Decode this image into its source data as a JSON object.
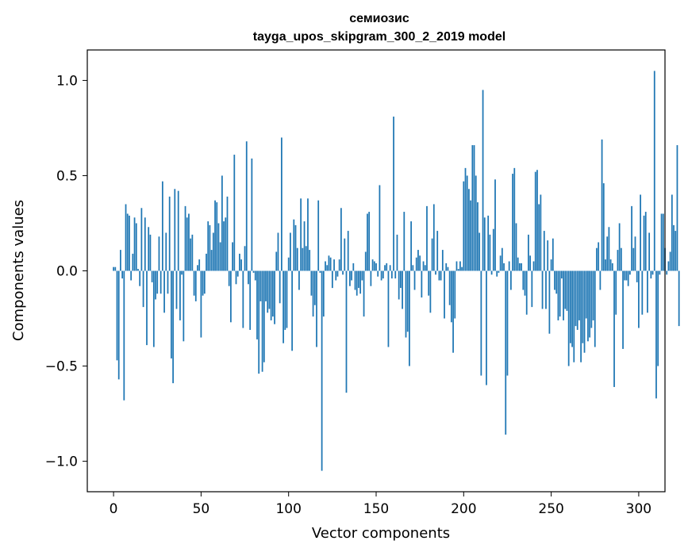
{
  "chart_data": {
    "type": "bar",
    "title": "семиозис",
    "subtitle": "tayga_upos_skipgram_300_2_2019 model",
    "xlabel": "Vector components",
    "ylabel": "Components values",
    "xlim": [
      -15,
      315
    ],
    "ylim": [
      -1.16,
      1.16
    ],
    "xticks": [
      0,
      50,
      100,
      150,
      200,
      250,
      300
    ],
    "xtick_labels": [
      "0",
      "50",
      "100",
      "150",
      "200",
      "250",
      "300"
    ],
    "yticks": [
      -1.0,
      -0.5,
      0.0,
      0.5,
      1.0
    ],
    "ytick_labels": [
      "−1.0",
      "−0.5",
      "0.0",
      "0.5",
      "1.0"
    ],
    "bar_color": "#1f77b4",
    "grid": false,
    "legend": "none",
    "values": [
      0.02,
      0.02,
      -0.47,
      -0.57,
      0.11,
      -0.04,
      -0.68,
      0.35,
      0.3,
      0.29,
      -0.05,
      0.09,
      0.28,
      0.25,
      0.01,
      -0.08,
      0.33,
      -0.19,
      0.28,
      -0.39,
      0.23,
      0.19,
      -0.06,
      -0.4,
      -0.15,
      -0.12,
      0.18,
      -0.12,
      0.47,
      -0.22,
      0.2,
      -0.12,
      0.39,
      -0.46,
      -0.59,
      0.43,
      -0.2,
      0.42,
      -0.26,
      -0.02,
      -0.37,
      0.34,
      0.28,
      0.3,
      0.17,
      0.19,
      -0.13,
      -0.16,
      0.03,
      0.06,
      -0.35,
      -0.13,
      -0.12,
      0.09,
      0.26,
      0.24,
      0.11,
      0.2,
      0.37,
      0.36,
      0.25,
      0.15,
      0.5,
      0.26,
      0.28,
      0.39,
      -0.08,
      -0.27,
      0.15,
      0.61,
      -0.07,
      -0.03,
      0.09,
      0.06,
      -0.3,
      0.13,
      0.68,
      -0.07,
      -0.31,
      0.59,
      -0.01,
      -0.05,
      -0.36,
      -0.54,
      -0.16,
      -0.53,
      -0.48,
      -0.16,
      -0.22,
      -0.2,
      -0.26,
      -0.24,
      -0.28,
      0.1,
      0.2,
      -0.17,
      0.7,
      -0.38,
      -0.31,
      -0.3,
      0.07,
      0.2,
      -0.42,
      0.27,
      0.24,
      0.12,
      -0.1,
      0.38,
      0.12,
      0.26,
      0.13,
      0.38,
      0.11,
      -0.13,
      -0.24,
      -0.18,
      -0.4,
      0.37,
      -0.01,
      -1.05,
      -0.24,
      0.05,
      0.03,
      0.08,
      0.07,
      -0.09,
      0.06,
      -0.05,
      -0.03,
      0.06,
      0.33,
      -0.02,
      0.17,
      -0.64,
      0.21,
      -0.08,
      -0.05,
      0.04,
      -0.1,
      -0.13,
      -0.09,
      -0.12,
      -0.05,
      -0.24,
      0.1,
      0.3,
      0.31,
      -0.08,
      0.06,
      0.05,
      0.04,
      -0.03,
      0.45,
      -0.05,
      -0.04,
      0.03,
      0.04,
      -0.4,
      0.03,
      -0.04,
      0.81,
      -0.04,
      0.19,
      -0.15,
      -0.09,
      -0.2,
      0.31,
      -0.35,
      -0.32,
      -0.5,
      0.26,
      0.03,
      -0.1,
      0.07,
      0.11,
      0.08,
      -0.14,
      0.05,
      0.03,
      0.34,
      -0.13,
      -0.22,
      0.17,
      0.35,
      -0.02,
      0.21,
      -0.05,
      -0.05,
      0.11,
      -0.25,
      0.04,
      0.02,
      -0.18,
      -0.27,
      -0.43,
      -0.25,
      0.05,
      0.01,
      0.05,
      0.02,
      0.47,
      0.54,
      0.5,
      0.43,
      0.37,
      0.66,
      0.66,
      0.5,
      0.36,
      0.2,
      -0.55,
      0.95,
      0.28,
      -0.6,
      0.29,
      0.19,
      -0.02,
      0.22,
      0.48,
      -0.03,
      -0.01,
      0.08,
      0.12,
      0.04,
      -0.86,
      -0.55,
      0.05,
      -0.1,
      0.51,
      0.54,
      0.25,
      0.07,
      0.04,
      0.04,
      -0.1,
      -0.13,
      -0.23,
      0.19,
      0.08,
      -0.19,
      0.05,
      0.52,
      0.53,
      0.35,
      0.4,
      -0.2,
      0.21,
      -0.2,
      0.16,
      -0.33,
      0.06,
      0.17,
      -0.1,
      -0.12,
      -0.26,
      -0.24,
      -0.04,
      -0.26,
      -0.2,
      -0.21,
      -0.5,
      -0.38,
      -0.4,
      -0.48,
      -0.29,
      -0.31,
      -0.26,
      -0.48,
      -0.38,
      -0.43,
      -0.25,
      -0.37,
      -0.35,
      -0.3,
      -0.26,
      -0.4,
      0.12,
      0.15,
      -0.1,
      0.69,
      0.46,
      0.06,
      0.18,
      0.23,
      0.06,
      0.04,
      -0.61,
      -0.23,
      0.11,
      0.25,
      0.12,
      -0.41,
      -0.05,
      -0.05,
      -0.08,
      -0.02,
      0.34,
      0.12,
      0.18,
      -0.06,
      -0.3,
      0.4,
      -0.23,
      0.29,
      0.31,
      -0.22,
      0.2,
      -0.04,
      -0.02,
      1.05,
      -0.67,
      -0.5,
      -0.02,
      0.3,
      0.3,
      0.12,
      -0.02,
      0.05,
      0.1,
      0.4,
      0.24,
      0.21,
      0.66,
      -0.29
    ]
  }
}
